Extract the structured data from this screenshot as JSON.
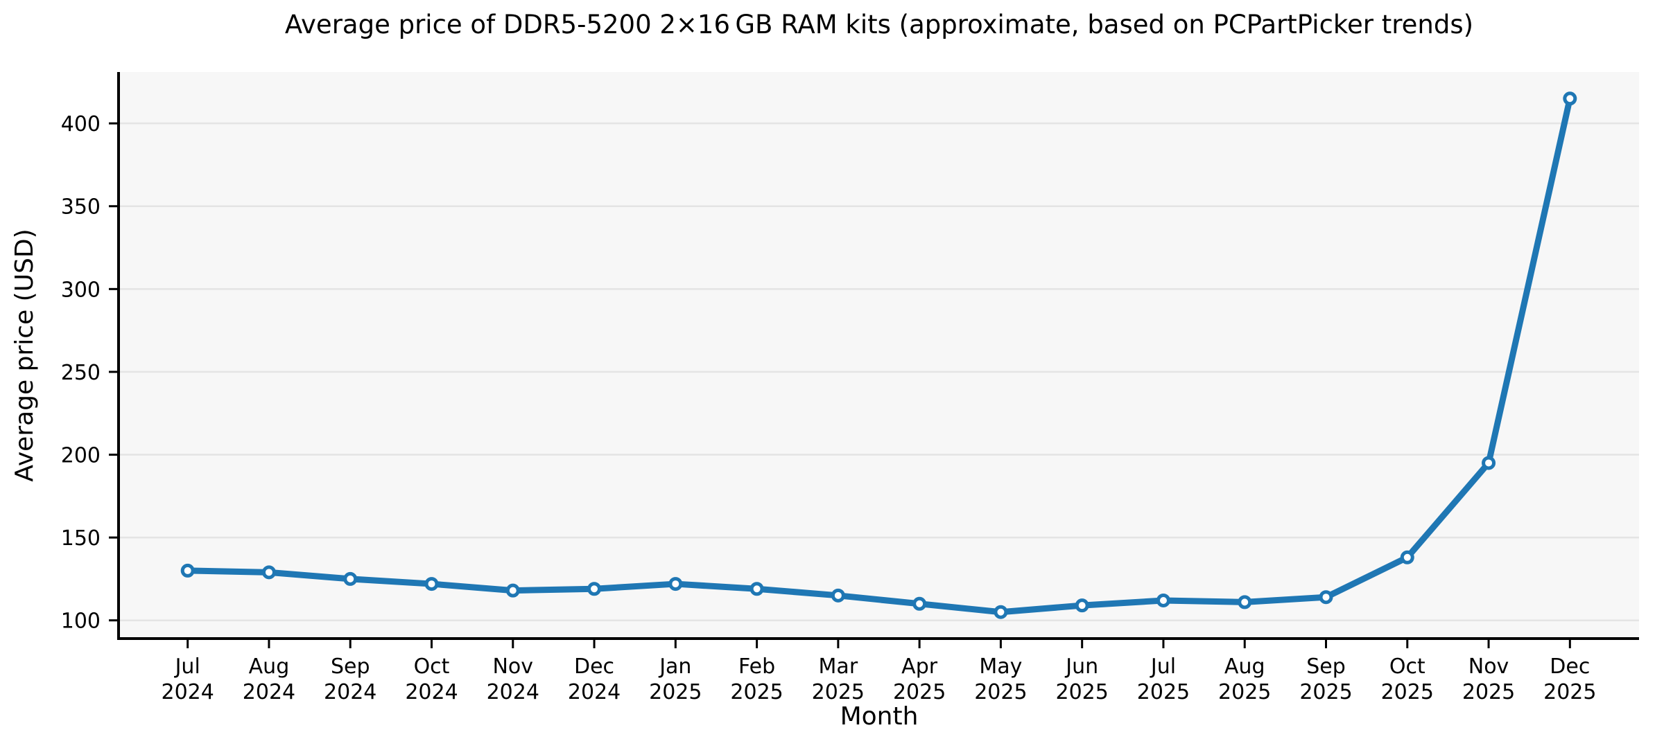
{
  "figure": {
    "background": "#ffffff"
  },
  "chart_data": {
    "type": "line",
    "title": "Average price of DDR5-5200 2×16 GB RAM kits (approximate, based on PCPartPicker trends)",
    "xlabel": "Month",
    "ylabel": "Average price (USD)",
    "categories": [
      "Jul 2024",
      "Aug 2024",
      "Sep 2024",
      "Oct 2024",
      "Nov 2024",
      "Dec 2024",
      "Jan 2025",
      "Feb 2025",
      "Mar 2025",
      "Apr 2025",
      "May 2025",
      "Jun 2025",
      "Jul 2025",
      "Aug 2025",
      "Sep 2025",
      "Oct 2025",
      "Nov 2025",
      "Dec 2025"
    ],
    "series": [
      {
        "name": "Average price (USD)",
        "values": [
          130,
          129,
          125,
          122,
          118,
          119,
          122,
          119,
          115,
          110,
          105,
          109,
          112,
          111,
          114,
          138,
          195,
          415
        ],
        "color": "#1f77b4",
        "marker": "open-circle",
        "marker_fill": "#ffffff"
      }
    ],
    "yticks": [
      100,
      150,
      200,
      250,
      300,
      350,
      400
    ],
    "ylim": [
      89,
      431
    ],
    "grid": "horizontal-only",
    "legend": "none",
    "plot_background": "#f7f7f7",
    "gridline_color": "#e4e4e4",
    "spine_color": "#000000",
    "spines_visible": [
      "left",
      "bottom"
    ]
  }
}
